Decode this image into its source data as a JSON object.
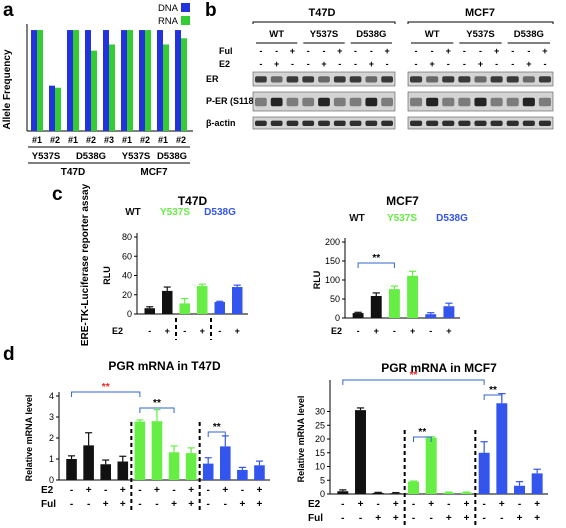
{
  "panels": {
    "a": {
      "label": "a"
    },
    "b": {
      "label": "b",
      "groups": [
        "T47D",
        "MCF7"
      ],
      "mutants": [
        "WT",
        "Y537S",
        "D538G"
      ],
      "rows": [
        "Ful",
        "E2"
      ],
      "ful_signs": [
        "-",
        "-",
        "+"
      ],
      "e2_signs": [
        "-",
        "+",
        "-"
      ],
      "blots": [
        "ER",
        "P-ER (S118)",
        "β-actin"
      ]
    },
    "c": {
      "label": "c",
      "side_label": "ERE-TK-Luciferase reporter assay",
      "legend": [
        "WT",
        "Y537S",
        "D538G"
      ],
      "e2_label": "E2",
      "e2_signs": [
        "-",
        "+",
        "-",
        "+",
        "-",
        "+"
      ],
      "sig": "**"
    },
    "d": {
      "label": "d",
      "e2_label": "E2",
      "ful_label": "Ful",
      "e2_signs": [
        "-",
        "+",
        "-",
        "+",
        "-",
        "+",
        "-",
        "+",
        "-",
        "+",
        "-",
        "+"
      ],
      "ful_signs": [
        "-",
        "-",
        "+",
        "+",
        "-",
        "-",
        "+",
        "+",
        "-",
        "-",
        "+",
        "+"
      ],
      "sig": "**"
    }
  },
  "colors": {
    "wt": "#111111",
    "y537s": "#66ee44",
    "d538g": "#3355ee",
    "dna": "#2233dd",
    "rna": "#33cc33",
    "red_sig": "#ee2222",
    "blue_bracket": "#3366cc"
  },
  "chart_data": [
    {
      "id": "a",
      "type": "bar",
      "ylabel": "Allele Frequency",
      "ylim": [
        0,
        50
      ],
      "legend_placement": "top-right",
      "categories": [
        "#1",
        "#2",
        "#1",
        "#2",
        "#3",
        "#1",
        "#2",
        "#1",
        "#2"
      ],
      "groups": [
        {
          "name": "Y537S",
          "cell": "T47D",
          "start": 0,
          "end": 1
        },
        {
          "name": "D538G",
          "cell": "T47D",
          "start": 2,
          "end": 4
        },
        {
          "name": "Y537S",
          "cell": "MCF7",
          "start": 5,
          "end": 6
        },
        {
          "name": "D538G",
          "cell": "MCF7",
          "start": 7,
          "end": 8
        }
      ],
      "cell_lines": [
        "T47D",
        "MCF7"
      ],
      "series": [
        {
          "name": "DNA",
          "values": [
            49,
            22,
            49,
            49,
            49,
            49,
            49,
            49,
            49
          ]
        },
        {
          "name": "RNA",
          "values": [
            49,
            21,
            49,
            39,
            42,
            49,
            49,
            42,
            45
          ]
        }
      ]
    },
    {
      "id": "c1",
      "type": "bar",
      "title": "T47D",
      "ylabel": "RLU",
      "ylim": [
        0,
        80
      ],
      "yticks": [
        0,
        20,
        40,
        60,
        80
      ],
      "values": [
        6,
        24,
        11,
        29,
        12.5,
        28
      ],
      "errors": [
        1.5,
        4,
        5,
        2,
        0.7,
        2
      ],
      "colors": [
        "#111111",
        "#111111",
        "#66ee44",
        "#66ee44",
        "#3355ee",
        "#3355ee"
      ]
    },
    {
      "id": "c2",
      "type": "bar",
      "title": "MCF7",
      "ylabel": "RLU",
      "ylim": [
        0,
        200
      ],
      "yticks": [
        0,
        50,
        100,
        150,
        200
      ],
      "values": [
        13,
        58,
        76,
        111,
        10,
        31
      ],
      "errors": [
        2,
        8,
        8,
        12,
        4,
        8
      ],
      "colors": [
        "#111111",
        "#111111",
        "#66ee44",
        "#66ee44",
        "#3355ee",
        "#3355ee"
      ],
      "annotations": [
        {
          "from": 0,
          "to": 2,
          "text": "**"
        }
      ]
    },
    {
      "id": "d1",
      "type": "bar",
      "title": "PGR mRNA in T47D",
      "ylabel": "Relative mRNA level",
      "ylim": [
        0,
        4
      ],
      "yticks": [
        0,
        1,
        2,
        3,
        4
      ],
      "values": [
        1.0,
        1.65,
        0.75,
        0.88,
        2.78,
        2.8,
        1.32,
        1.28,
        0.78,
        1.6,
        0.48,
        0.7
      ],
      "errors": [
        0.15,
        0.6,
        0.2,
        0.25,
        0.08,
        0.55,
        0.3,
        0.25,
        0.28,
        0.5,
        0.12,
        0.2
      ],
      "colors": [
        "#111111",
        "#111111",
        "#111111",
        "#111111",
        "#66ee44",
        "#66ee44",
        "#66ee44",
        "#66ee44",
        "#3355ee",
        "#3355ee",
        "#3355ee",
        "#3355ee"
      ],
      "annotations": [
        {
          "from": 0,
          "to": 4,
          "text": "**",
          "color": "red"
        },
        {
          "from": 4,
          "to": 6,
          "text": "**",
          "color": "black"
        },
        {
          "from": 8,
          "to": 9,
          "text": "**",
          "color": "black"
        }
      ]
    },
    {
      "id": "d2",
      "type": "bar",
      "title": "PGR mRNA in MCF7",
      "ylabel": "Relative mRNA level",
      "ylim": [
        0,
        40
      ],
      "yticks": [
        0,
        5,
        10,
        15,
        20,
        25,
        30
      ],
      "values": [
        1,
        30.5,
        0.4,
        0.3,
        4.5,
        20.5,
        0.5,
        0.5,
        15,
        33,
        3,
        7.5
      ],
      "errors": [
        0.5,
        0.8,
        0.2,
        0.2,
        0.2,
        0.3,
        0.2,
        0.2,
        4,
        3.5,
        1.5,
        1.5
      ],
      "colors": [
        "#111111",
        "#111111",
        "#111111",
        "#111111",
        "#66ee44",
        "#66ee44",
        "#66ee44",
        "#66ee44",
        "#3355ee",
        "#3355ee",
        "#3355ee",
        "#3355ee"
      ],
      "annotations": [
        {
          "from": 0,
          "to": 8,
          "text": "**",
          "color": "red"
        },
        {
          "from": 4,
          "to": 5,
          "text": "**",
          "color": "black"
        },
        {
          "from": 8,
          "to": 9,
          "text": "**",
          "color": "black"
        }
      ]
    }
  ]
}
